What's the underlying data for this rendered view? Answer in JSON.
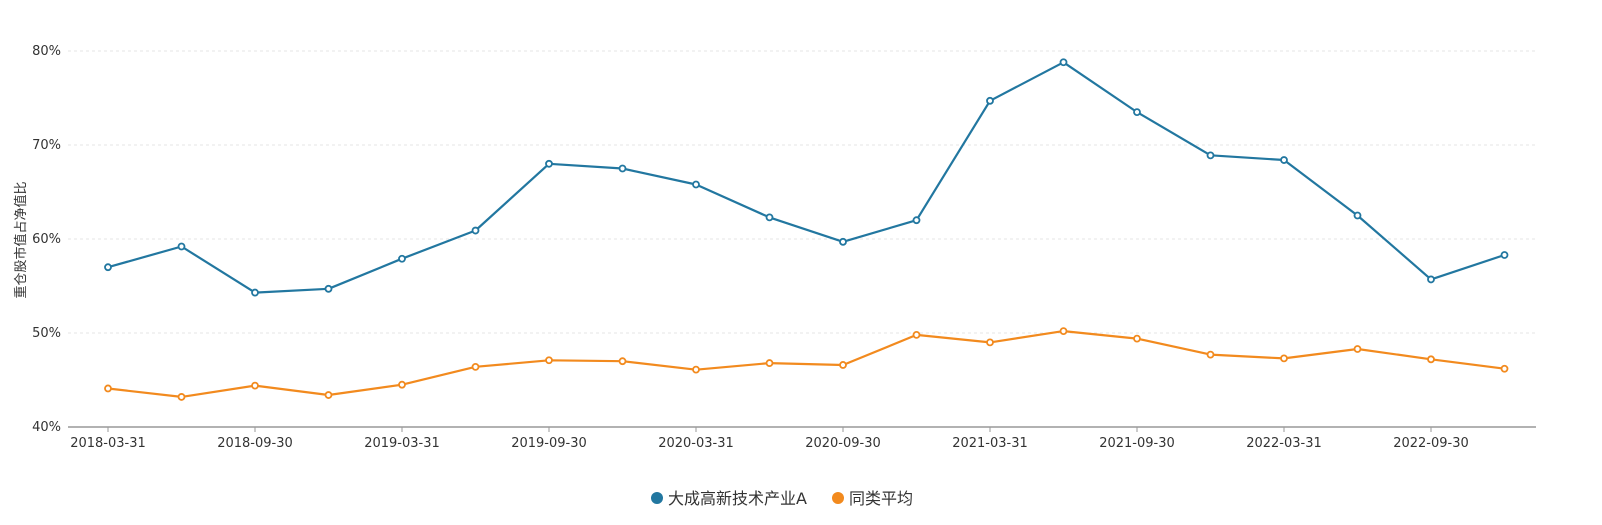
{
  "chart_data": {
    "type": "line",
    "ylabel": "重仓股市值占净值比",
    "ylim": [
      40,
      80
    ],
    "yticks": [
      "40%",
      "50%",
      "60%",
      "70%",
      "80%"
    ],
    "grid": true,
    "legend_position": "bottom-center",
    "x": [
      "2018-03-31",
      "2018-06-30",
      "2018-09-30",
      "2018-12-31",
      "2019-03-31",
      "2019-06-30",
      "2019-09-30",
      "2019-12-31",
      "2020-03-31",
      "2020-06-30",
      "2020-09-30",
      "2020-12-31",
      "2021-03-31",
      "2021-06-30",
      "2021-09-30",
      "2021-12-31",
      "2022-03-31",
      "2022-06-30",
      "2022-09-30",
      "2022-12-31"
    ],
    "xtick_labels": [
      "2018-03-31",
      "2018-09-30",
      "2019-03-31",
      "2019-09-30",
      "2020-03-31",
      "2020-09-30",
      "2021-03-31",
      "2021-09-30",
      "2022-03-31",
      "2022-09-30"
    ],
    "series": [
      {
        "name": "大成高新技术产业A",
        "color": "#2277a0",
        "values": [
          57.0,
          59.2,
          54.3,
          54.7,
          57.9,
          60.9,
          68.0,
          67.5,
          65.8,
          62.3,
          59.7,
          62.0,
          74.7,
          78.8,
          73.5,
          68.9,
          68.4,
          62.5,
          55.7,
          58.3
        ]
      },
      {
        "name": "同类平均",
        "color": "#f28a1e",
        "values": [
          44.1,
          43.2,
          44.4,
          43.4,
          44.5,
          46.4,
          47.1,
          47.0,
          46.1,
          46.8,
          46.6,
          49.8,
          49.0,
          50.2,
          49.4,
          47.7,
          47.3,
          48.3,
          47.2,
          46.2
        ]
      }
    ]
  }
}
